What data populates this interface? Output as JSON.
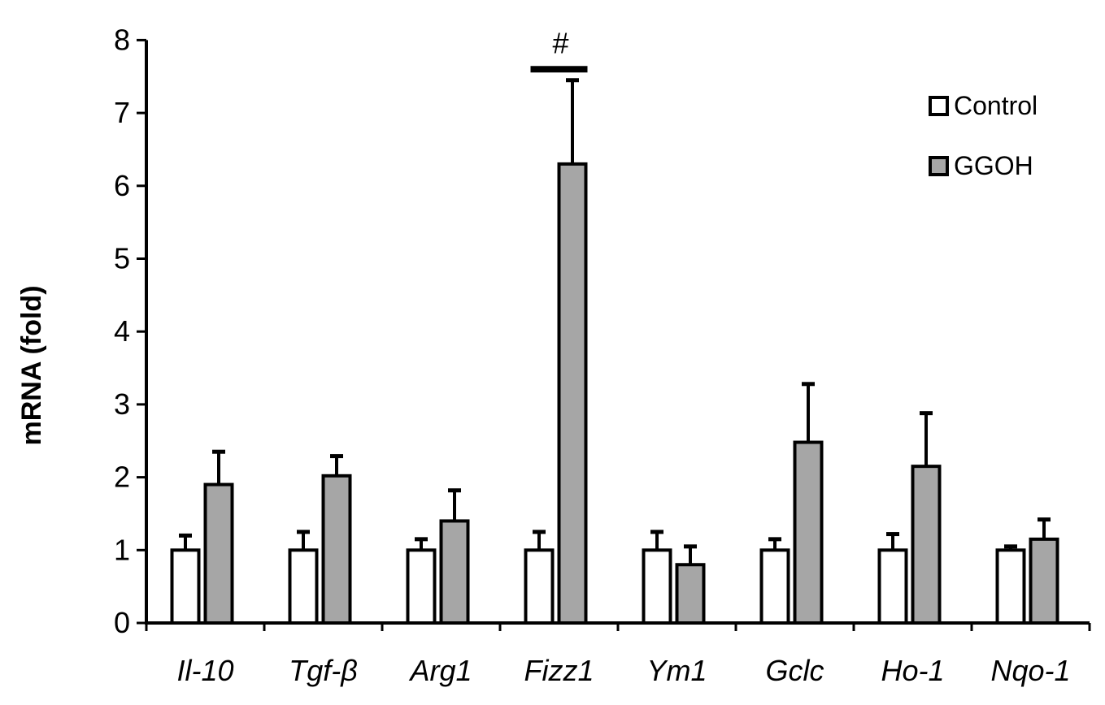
{
  "chart_data": {
    "type": "bar",
    "ylabel": "mRNA (fold)",
    "ylim": [
      0,
      8
    ],
    "yticks": [
      "0",
      "1",
      "2",
      "3",
      "4",
      "5",
      "6",
      "7",
      "8"
    ],
    "categories": [
      "Il-10",
      "Tgf-β",
      "Arg1",
      "Fizz1",
      "Ym1",
      "Gclc",
      "Ho-1",
      "Nqo-1"
    ],
    "series": [
      {
        "name": "Control",
        "color": "#ffffff",
        "values": [
          1.0,
          1.0,
          1.0,
          1.0,
          1.0,
          1.0,
          1.0,
          1.0
        ],
        "error": [
          0.2,
          0.25,
          0.15,
          0.25,
          0.25,
          0.15,
          0.22,
          0.05
        ]
      },
      {
        "name": "GGOH",
        "color": "#a6a6a6",
        "values": [
          1.9,
          2.02,
          1.4,
          6.3,
          0.8,
          2.48,
          2.15,
          1.15
        ],
        "error": [
          0.45,
          0.27,
          0.42,
          1.15,
          0.25,
          0.8,
          0.73,
          0.27
        ]
      }
    ],
    "annotations": [
      {
        "text": "#",
        "category": "Fizz1",
        "value": 7.6
      }
    ],
    "legend": "top-right",
    "grid": false
  }
}
